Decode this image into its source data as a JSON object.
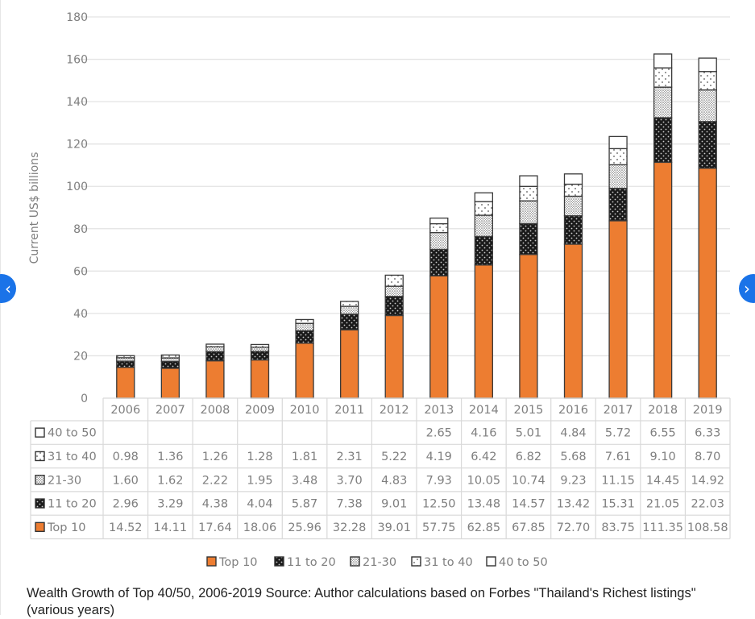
{
  "chart_data": {
    "type": "bar",
    "stacked": true,
    "title": "",
    "xlabel": "",
    "ylabel": "Current US$ billions",
    "ylim": [
      0,
      180
    ],
    "yticks": [
      0,
      20,
      40,
      60,
      80,
      100,
      120,
      140,
      160,
      180
    ],
    "grid": true,
    "legend_position": "bottom",
    "categories": [
      "2006",
      "2007",
      "2008",
      "2009",
      "2010",
      "2011",
      "2012",
      "2013",
      "2014",
      "2015",
      "2016",
      "2017",
      "2018",
      "2019"
    ],
    "series": [
      {
        "name": "Top 10",
        "color": "#ed7d31",
        "pattern": "solid",
        "values": [
          14.52,
          14.11,
          17.64,
          18.06,
          25.96,
          32.28,
          39.01,
          57.75,
          62.85,
          67.85,
          72.7,
          83.75,
          111.35,
          108.58
        ],
        "labels": [
          "14.52",
          "14.11",
          "17.64",
          "18.06",
          "25.96",
          "32.28",
          "39.01",
          "57.75",
          "62.85",
          "67.85",
          "72.70",
          "83.75",
          "111.35",
          "108.58"
        ]
      },
      {
        "name": "11 to 20",
        "color": "#1a1a1a",
        "pattern": "dark-dots",
        "values": [
          2.96,
          3.29,
          4.38,
          4.04,
          5.87,
          7.38,
          9.01,
          12.5,
          13.48,
          14.57,
          13.42,
          15.31,
          21.05,
          22.03
        ],
        "labels": [
          "2.96",
          "3.29",
          "4.38",
          "4.04",
          "5.87",
          "7.38",
          "9.01",
          "12.50",
          "13.48",
          "14.57",
          "13.42",
          "15.31",
          "21.05",
          "22.03"
        ]
      },
      {
        "name": "21-30",
        "color": "#9a9a9a",
        "pattern": "dense-dots",
        "values": [
          1.6,
          1.62,
          2.22,
          1.95,
          3.48,
          3.7,
          4.83,
          7.93,
          10.05,
          10.74,
          9.23,
          11.15,
          14.45,
          14.92
        ],
        "labels": [
          "1.60",
          "1.62",
          "2.22",
          "1.95",
          "3.48",
          "3.70",
          "4.83",
          "7.93",
          "10.05",
          "10.74",
          "9.23",
          "11.15",
          "14.45",
          "14.92"
        ]
      },
      {
        "name": "31 to 40",
        "color": "#ffffff",
        "pattern": "sparse-dots",
        "values": [
          0.98,
          1.36,
          1.26,
          1.28,
          1.81,
          2.31,
          5.22,
          4.19,
          6.42,
          6.82,
          5.68,
          7.61,
          9.1,
          8.7
        ],
        "labels": [
          "0.98",
          "1.36",
          "1.26",
          "1.28",
          "1.81",
          "2.31",
          "5.22",
          "4.19",
          "6.42",
          "6.82",
          "5.68",
          "7.61",
          "9.10",
          "8.70"
        ]
      },
      {
        "name": "40 to 50",
        "color": "#ffffff",
        "pattern": "white",
        "values": [
          null,
          null,
          null,
          null,
          null,
          null,
          null,
          2.65,
          4.16,
          5.01,
          4.84,
          5.72,
          6.55,
          6.33
        ],
        "labels": [
          "",
          "",
          "",
          "",
          "",
          "",
          "",
          "2.65",
          "4.16",
          "5.01",
          "4.84",
          "5.72",
          "6.55",
          "6.33"
        ]
      }
    ],
    "table_row_order": [
      "40 to 50",
      "31 to 40",
      "21-30",
      "11 to 20",
      "Top 10"
    ],
    "legend_order": [
      "Top 10",
      "11 to 20",
      "21-30",
      "31 to 40",
      "40 to 50"
    ]
  },
  "caption": "Wealth Growth of Top 40/50, 2006-2019 Source: Author calculations based on Forbes \"Thailand's Richest listings\" (various years)",
  "nav": {
    "prev_icon": "‹",
    "next_icon": "›"
  }
}
